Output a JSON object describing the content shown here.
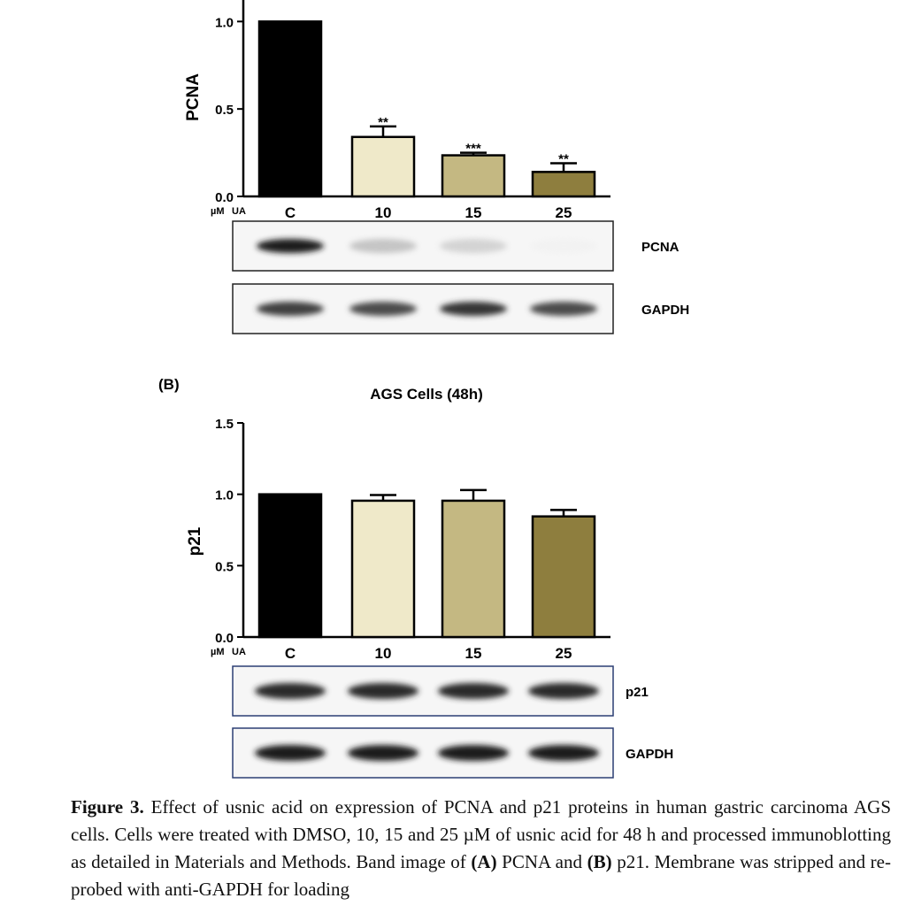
{
  "chart_data": [
    {
      "type": "bar",
      "panel_label": "",
      "title": "",
      "ylabel": "PCNA",
      "xlabel_prefix": [
        "µM",
        "UA"
      ],
      "categories": [
        "C",
        "10",
        "15",
        "25"
      ],
      "values": [
        1.0,
        0.34,
        0.235,
        0.14
      ],
      "errors": [
        0,
        0.06,
        0.015,
        0.05
      ],
      "significance": [
        "",
        "**",
        "***",
        "**"
      ],
      "ylim": [
        0,
        1.3
      ],
      "yticks": [
        "0.0",
        "0.5",
        "1.0"
      ],
      "colors": [
        "#000000",
        "#efe9c9",
        "#c4b882",
        "#8e7e3e"
      ],
      "blots": [
        {
          "label": "PCNA",
          "intensity": [
            1.0,
            0.35,
            0.28,
            0.08
          ],
          "border": "#222222"
        },
        {
          "label": "GAPDH",
          "intensity": [
            0.85,
            0.8,
            0.9,
            0.8
          ],
          "border": "#222222"
        }
      ]
    },
    {
      "type": "bar",
      "panel_label": "(B)",
      "title": "AGS Cells (48h)",
      "ylabel": "p21",
      "xlabel_prefix": [
        "µM",
        "UA"
      ],
      "categories": [
        "C",
        "10",
        "15",
        "25"
      ],
      "values": [
        1.0,
        0.955,
        0.955,
        0.845
      ],
      "errors": [
        0,
        0.04,
        0.075,
        0.045
      ],
      "significance": [
        "",
        "",
        "",
        ""
      ],
      "ylim": [
        0,
        1.5
      ],
      "yticks": [
        "0.0",
        "0.5",
        "1.0",
        "1.5"
      ],
      "colors": [
        "#000000",
        "#efe9c9",
        "#c4b882",
        "#8e7e3e"
      ],
      "blots": [
        {
          "label": "p21",
          "intensity": [
            0.95,
            0.95,
            0.95,
            0.95
          ],
          "border": "#2c3f73"
        },
        {
          "label": "GAPDH",
          "intensity": [
            1.0,
            1.0,
            1.0,
            1.0
          ],
          "border": "#2c3f73"
        }
      ]
    }
  ],
  "caption": {
    "figure_label": "Figure 3.",
    "text_1": " Effect of usnic acid on expression of PCNA and p21 proteins in human gastric carcinoma AGS cells. Cells were treated with DMSO, 10, 15 and 25 µM of usnic acid for 48 h and processed immunoblotting as detailed in Materials and Methods. Band image of ",
    "label_a": "(A)",
    "text_2": " PCNA and ",
    "label_b": "(B)",
    "text_3": " p21. Membrane was stripped and re-probed with anti-GAPDH for loading"
  }
}
